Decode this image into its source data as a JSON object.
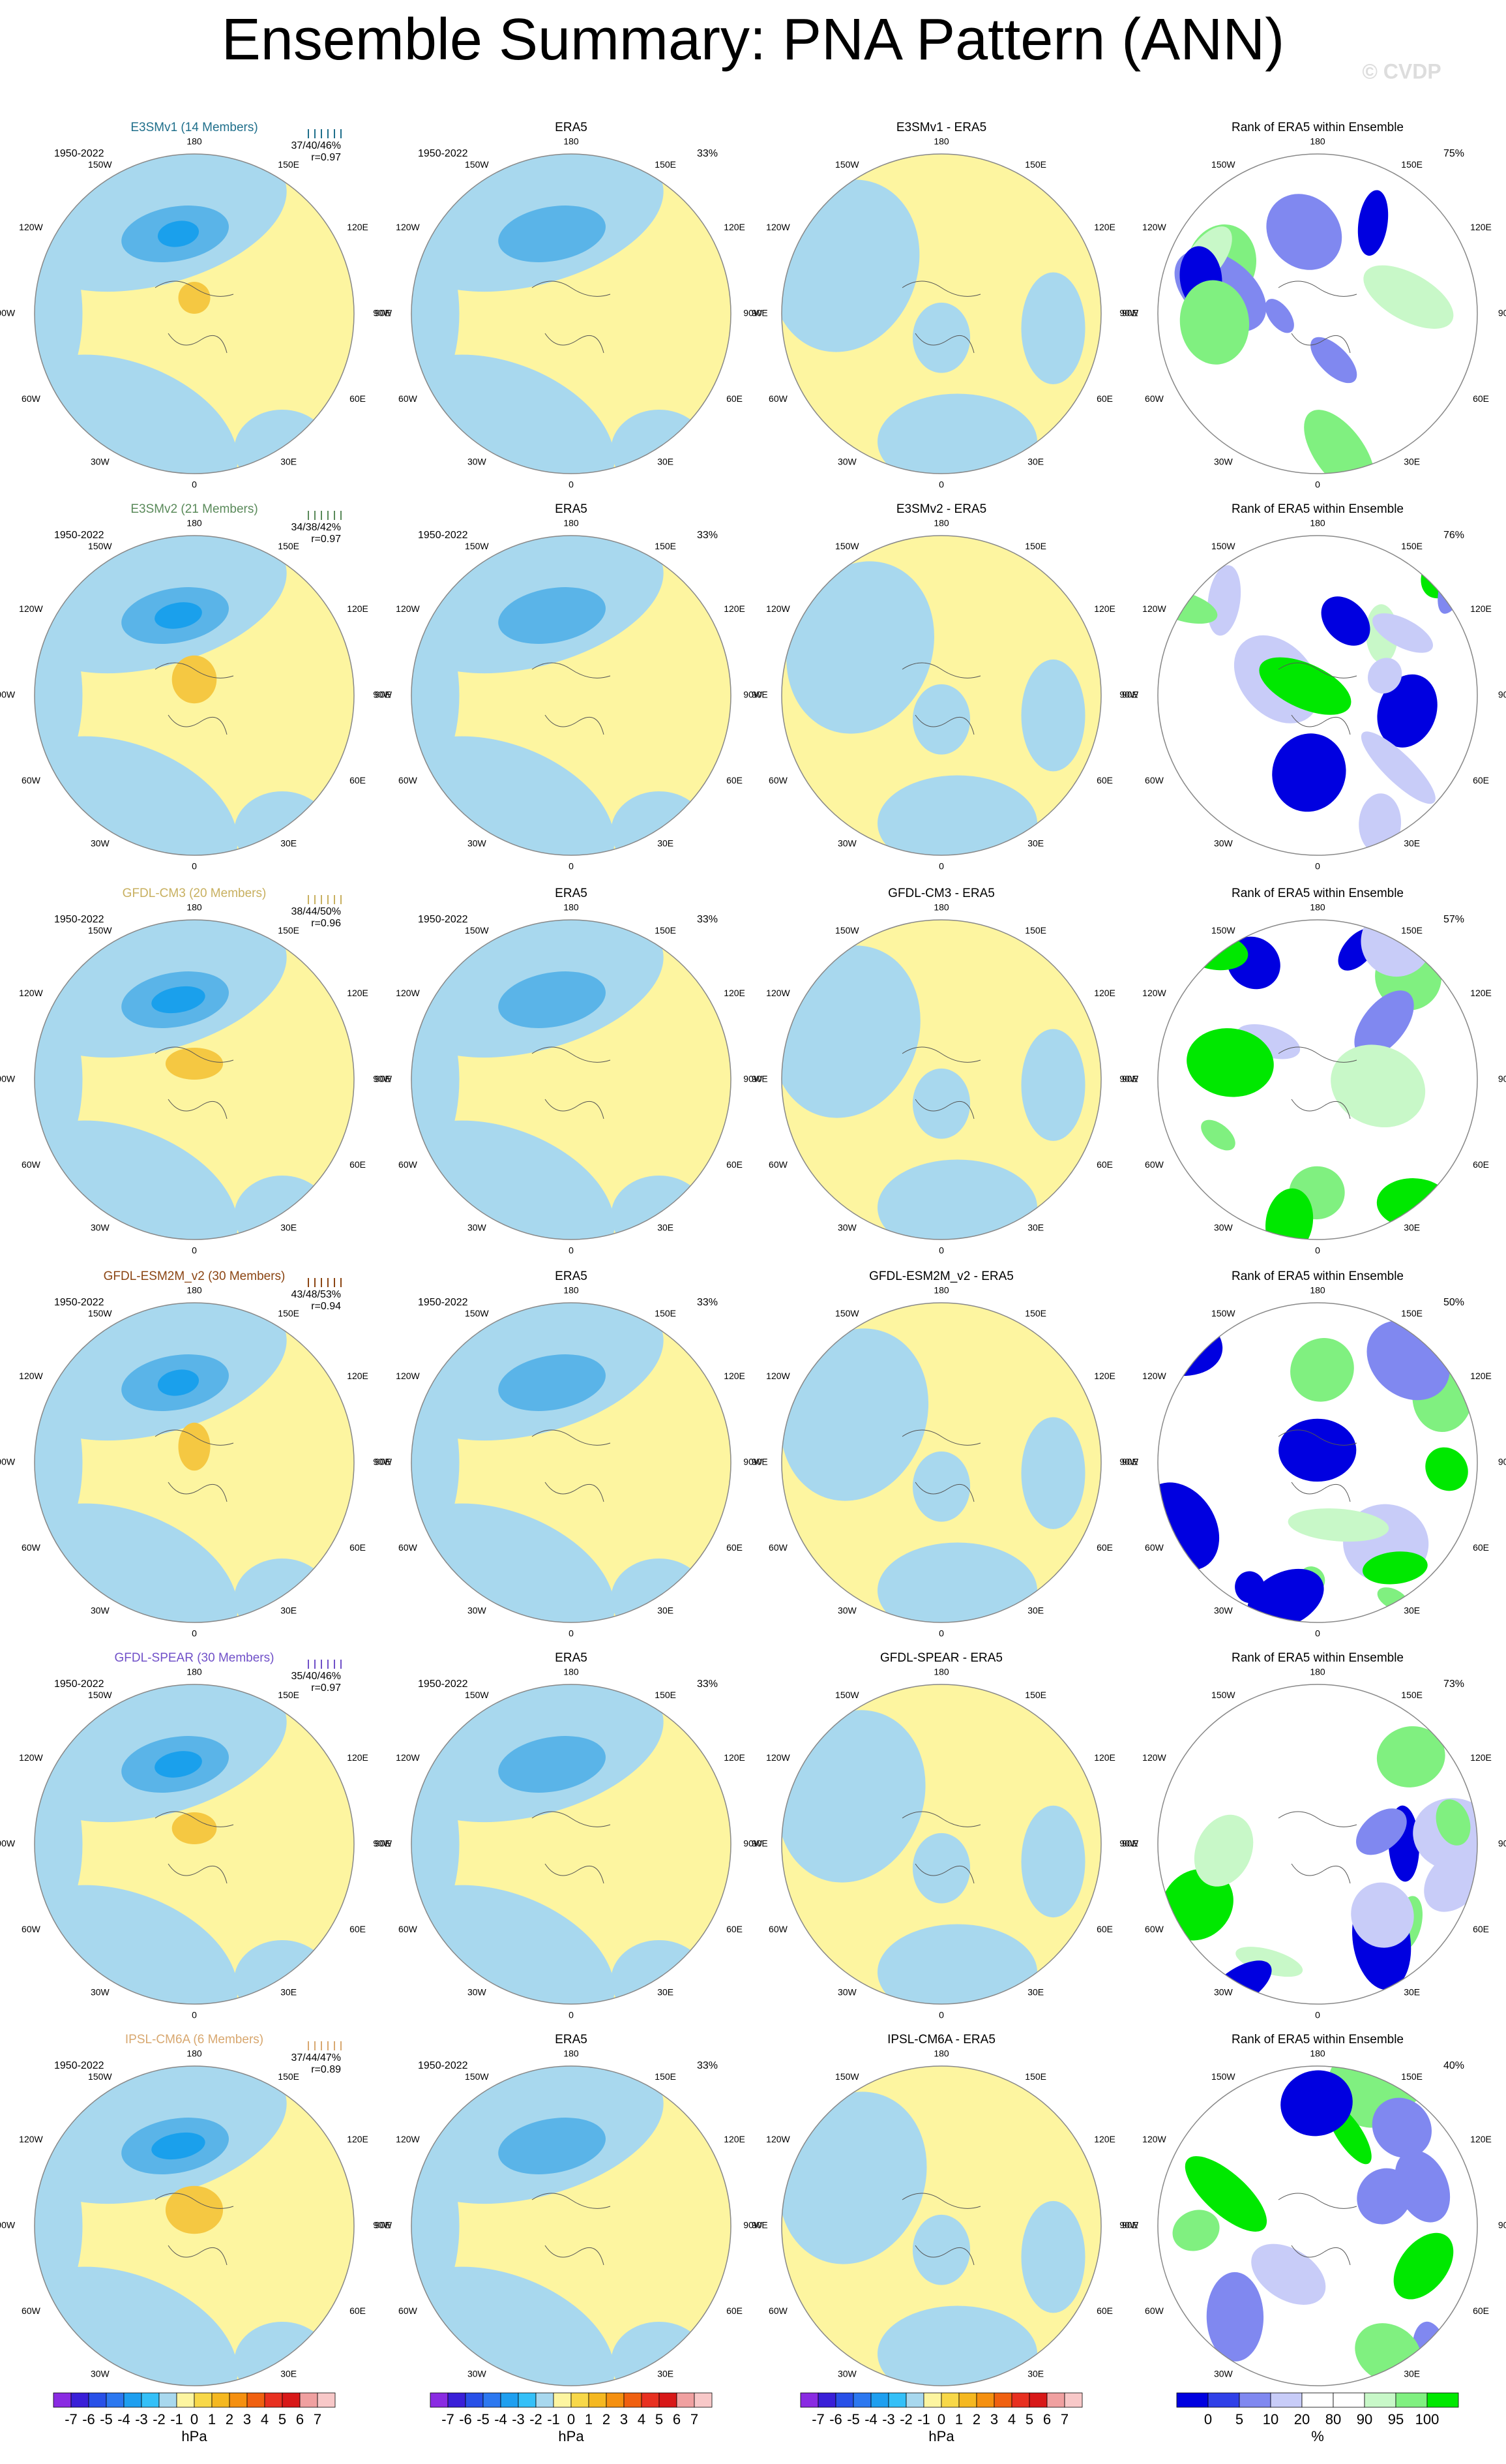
{
  "title": "Ensemble Summary: PNA Pattern (ANN)",
  "watermark": "© CVDP",
  "longitude_labels": [
    "180",
    "150W",
    "150E",
    "120W",
    "120E",
    "90W",
    "90E",
    "60W",
    "60E",
    "30W",
    "30E",
    "0"
  ],
  "rows": [
    {
      "model": "E3SMv1 (14 Members)",
      "color": "#1f6f8b",
      "period": "1950-2022",
      "pct_range": "37/40/46%",
      "r": "r=0.97",
      "era5_title": "ERA5",
      "era5_period": "1950-2022",
      "era5_pct": "33%",
      "diff_title": "E3SMv1 - ERA5",
      "rank_title": "Rank of ERA5 within Ensemble",
      "rank_pct": "75%"
    },
    {
      "model": "E3SMv2 (21 Members)",
      "color": "#5a8a5a",
      "period": "1950-2022",
      "pct_range": "34/38/42%",
      "r": "r=0.97",
      "era5_title": "ERA5",
      "era5_period": "1950-2022",
      "era5_pct": "33%",
      "diff_title": "E3SMv2 - ERA5",
      "rank_title": "Rank of ERA5 within Ensemble",
      "rank_pct": "76%"
    },
    {
      "model": "GFDL-CM3 (20 Members)",
      "color": "#c8b060",
      "period": "1950-2022",
      "pct_range": "38/44/50%",
      "r": "r=0.96",
      "era5_title": "ERA5",
      "era5_period": "1950-2022",
      "era5_pct": "33%",
      "diff_title": "GFDL-CM3 - ERA5",
      "rank_title": "Rank of ERA5 within Ensemble",
      "rank_pct": "57%"
    },
    {
      "model": "GFDL-ESM2M_v2 (30 Members)",
      "color": "#8b4513",
      "period": "1950-2022",
      "pct_range": "43/48/53%",
      "r": "r=0.94",
      "era5_title": "ERA5",
      "era5_period": "1950-2022",
      "era5_pct": "33%",
      "diff_title": "GFDL-ESM2M_v2 - ERA5",
      "rank_title": "Rank of ERA5 within Ensemble",
      "rank_pct": "50%"
    },
    {
      "model": "GFDL-SPEAR (30 Members)",
      "color": "#7050c8",
      "period": "1950-2022",
      "pct_range": "35/40/46%",
      "r": "r=0.97",
      "era5_title": "ERA5",
      "era5_period": "1950-2022",
      "era5_pct": "33%",
      "diff_title": "GFDL-SPEAR - ERA5",
      "rank_title": "Rank of ERA5 within Ensemble",
      "rank_pct": "73%"
    },
    {
      "model": "IPSL-CM6A (6 Members)",
      "color": "#d8a870",
      "period": "1950-2022",
      "pct_range": "37/44/47%",
      "r": "r=0.89",
      "era5_title": "ERA5",
      "era5_period": "1950-2022",
      "era5_pct": "33%",
      "diff_title": "IPSL-CM6A - ERA5",
      "rank_title": "Rank of ERA5 within Ensemble",
      "rank_pct": "40%"
    }
  ],
  "colorbars": {
    "pattern": {
      "ticks": [
        -7,
        -6,
        -5,
        -4,
        -3,
        -2,
        -1,
        0,
        1,
        2,
        3,
        4,
        5,
        6,
        7
      ],
      "unit": "hPa",
      "colors": [
        "#8a2be2",
        "#3a1fd8",
        "#2850e8",
        "#2c78f0",
        "#1e9ff0",
        "#34c0f8",
        "#a8d8ee",
        "#fdf5a0",
        "#f8d848",
        "#f5b820",
        "#f59010",
        "#f06010",
        "#e83020",
        "#d81818",
        "#f0a0a0",
        "#f8c8c8"
      ]
    },
    "rank": {
      "ticks": [
        0,
        5,
        10,
        20,
        80,
        90,
        95,
        100
      ],
      "unit": "%",
      "colors": [
        "#0000e0",
        "#3040e8",
        "#8088f0",
        "#c8ccf8",
        "#ffffff",
        "#ffffff",
        "#c8f8c8",
        "#80f080",
        "#00e800"
      ]
    }
  }
}
